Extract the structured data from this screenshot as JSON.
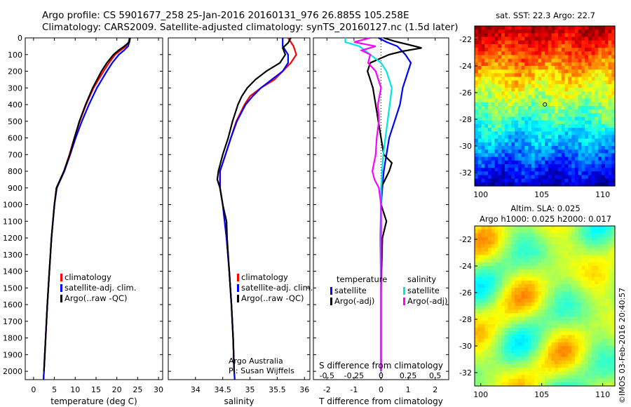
{
  "header": {
    "line1": "Argo profile: CS 5901677_258 25-Jan-2016 20160131_976 26.885S 105.258E",
    "line2": "Climatology: CARS2009. Satellite-adjusted climatology: synTS_20160127.nc (1.5d later)"
  },
  "footer_stamp": "©IMOS 03-Feb-2016 20:40:57",
  "colors": {
    "climatology": "#ff0000",
    "satellite": "#0000ff",
    "argo": "#000000",
    "sal_satellite": "#00e5e5",
    "sal_argo": "#ff00ff"
  },
  "chart_data": [
    {
      "type": "line",
      "xlabel": "temperature (deg C)",
      "ylabel": "",
      "xlim": [
        -2,
        31
      ],
      "ylim": [
        2050,
        0
      ],
      "xticks": [
        0,
        5,
        10,
        15,
        20,
        25,
        30
      ],
      "yticks": [
        0,
        100,
        200,
        300,
        400,
        500,
        600,
        700,
        800,
        900,
        1000,
        1100,
        1200,
        1300,
        1400,
        1500,
        1600,
        1700,
        1800,
        1900,
        2000
      ],
      "legend": [
        "climatology",
        "satellite-adj. clim.",
        "Argo(..raw -QC)"
      ],
      "series": [
        {
          "name": "climatology",
          "depth": [
            0,
            25,
            50,
            75,
            100,
            150,
            200,
            300,
            400,
            500,
            600,
            700,
            800,
            900,
            1000,
            1200,
            1400,
            1600,
            1800,
            2000,
            2050
          ],
          "values": [
            23.1,
            22.8,
            22.2,
            20.9,
            19.6,
            18.1,
            16.8,
            14.4,
            12.6,
            11.1,
            9.8,
            8.6,
            7.3,
            5.5,
            5.0,
            4.3,
            3.8,
            3.3,
            2.9,
            2.5,
            2.4
          ]
        },
        {
          "name": "satellite-adj. clim.",
          "depth": [
            0,
            25,
            50,
            75,
            100,
            150,
            200,
            300,
            400,
            500,
            600,
            700,
            800,
            900,
            1000,
            1200,
            1400,
            1600,
            1800,
            2000,
            2050
          ],
          "values": [
            23.0,
            23.0,
            22.7,
            21.7,
            20.5,
            18.9,
            17.6,
            15.2,
            13.3,
            11.6,
            10.1,
            8.8,
            7.4,
            5.6,
            5.0,
            4.3,
            3.8,
            3.3,
            2.9,
            2.5,
            2.4
          ]
        },
        {
          "name": "Argo(..raw -QC)",
          "depth": [
            0,
            25,
            50,
            75,
            100,
            150,
            200,
            300,
            400,
            500,
            600,
            700,
            800,
            900,
            1000,
            1200,
            1400,
            1600,
            1800,
            2000
          ],
          "values": [
            23.2,
            23.0,
            21.8,
            20.4,
            19.2,
            17.6,
            16.3,
            14.2,
            12.5,
            11.0,
            9.8,
            8.7,
            7.3,
            5.5,
            5.0,
            4.3,
            3.8,
            3.3,
            2.9,
            2.5
          ]
        }
      ]
    },
    {
      "type": "line",
      "xlabel": "salinity",
      "ylabel": "",
      "xlim": [
        33.5,
        36.1
      ],
      "ylim": [
        2050,
        0
      ],
      "xticks": [
        34,
        34.5,
        35,
        35.5,
        36
      ],
      "legend": [
        "climatology",
        "satellite-adj. clim.",
        "Argo(..raw -QC)"
      ],
      "annotation": [
        "Argo Australia",
        "PI: Susan Wijffels"
      ],
      "series": [
        {
          "name": "climatology",
          "depth": [
            0,
            50,
            100,
            150,
            200,
            250,
            300,
            350,
            400,
            500,
            600,
            700,
            800,
            900,
            1000,
            1200,
            1400,
            1600,
            1800,
            2000,
            2050
          ],
          "values": [
            35.7,
            35.8,
            35.85,
            35.75,
            35.6,
            35.45,
            35.2,
            35.0,
            34.9,
            34.75,
            34.65,
            34.55,
            34.45,
            34.45,
            34.5,
            34.57,
            34.62,
            34.66,
            34.69,
            34.71,
            34.72
          ]
        },
        {
          "name": "satellite-adj. clim.",
          "depth": [
            0,
            50,
            100,
            150,
            200,
            250,
            300,
            350,
            400,
            500,
            600,
            700,
            800,
            900,
            1000,
            1200,
            1400,
            1600,
            1800,
            2000,
            2050
          ],
          "values": [
            35.6,
            35.6,
            35.7,
            35.7,
            35.6,
            35.4,
            35.2,
            35.05,
            34.92,
            34.76,
            34.65,
            34.55,
            34.45,
            34.45,
            34.5,
            34.57,
            34.62,
            34.66,
            34.69,
            34.71,
            34.72
          ]
        },
        {
          "name": "Argo(..raw -QC)",
          "depth": [
            0,
            30,
            60,
            100,
            150,
            200,
            250,
            300,
            350,
            400,
            500,
            600,
            700,
            800,
            850,
            900,
            1000,
            1100,
            1200,
            1400,
            1600,
            1800,
            2000
          ],
          "values": [
            35.75,
            35.7,
            35.6,
            35.65,
            35.55,
            35.3,
            35.1,
            34.95,
            34.85,
            34.78,
            34.68,
            34.6,
            34.5,
            34.42,
            34.4,
            34.45,
            34.5,
            34.57,
            34.58,
            34.62,
            34.66,
            34.69,
            34.71
          ]
        }
      ]
    },
    {
      "type": "line",
      "xlabel": "T difference from climatology",
      "xlabel2": "S difference from climatology",
      "xlim": [
        -2.5,
        2.5
      ],
      "ylim": [
        2050,
        0
      ],
      "xticks": [
        -2,
        -1,
        0,
        1,
        2
      ],
      "xticks_labels": [
        "-2",
        "-1",
        "0",
        "1",
        "2"
      ],
      "s_xticks_labels": [
        "-0.5",
        "-0.25",
        "0",
        "0.25",
        "0.5"
      ],
      "legend_temperature": {
        "title": "temperature",
        "items": [
          "satellite",
          "Argo(-adj)"
        ]
      },
      "legend_salinity": {
        "title": "salinity",
        "items": [
          "satellite",
          "Argo(-adj)"
        ]
      },
      "series": [
        {
          "name": "satellite",
          "group": "temperature",
          "depth": [
            0,
            25,
            50,
            100,
            150,
            200,
            300,
            400,
            500,
            600,
            700,
            800,
            900,
            1000,
            1200,
            1500,
            2000
          ],
          "values": [
            -0.1,
            0.2,
            0.6,
            0.9,
            1.1,
            1.0,
            0.8,
            0.7,
            0.5,
            0.3,
            0.2,
            0.1,
            0.05,
            0.0,
            0.0,
            0.0,
            0.0
          ]
        },
        {
          "name": "Argo(-adj)",
          "group": "temperature",
          "depth": [
            0,
            20,
            40,
            60,
            80,
            100,
            150,
            200,
            300,
            400,
            500,
            600,
            700,
            750,
            800,
            900,
            1000,
            1100,
            1200,
            1500,
            2000
          ],
          "values": [
            0.1,
            0.5,
            1.0,
            1.5,
            0.8,
            0.3,
            -0.4,
            -0.5,
            -0.3,
            -0.2,
            -0.1,
            0.0,
            0.1,
            0.4,
            0.3,
            0.0,
            0.0,
            0.2,
            0.05,
            0.0,
            0.0
          ]
        },
        {
          "name": "satellite",
          "group": "salinity",
          "depth": [
            0,
            25,
            50,
            100,
            150,
            200,
            300,
            400,
            500,
            600,
            700,
            800,
            900,
            1000,
            1200,
            1500,
            2000
          ],
          "values": [
            -0.33,
            -0.33,
            -0.2,
            -0.1,
            0.0,
            0.05,
            0.1,
            0.08,
            0.06,
            0.04,
            0.02,
            0.01,
            0.0,
            0.0,
            -0.01,
            0.0,
            0.0
          ]
        },
        {
          "name": "Argo(-adj)",
          "group": "salinity",
          "depth": [
            0,
            25,
            50,
            75,
            100,
            150,
            200,
            300,
            400,
            500,
            600,
            700,
            800,
            850,
            900,
            1000,
            1200,
            1500,
            2000
          ],
          "values": [
            -0.1,
            -0.25,
            -0.05,
            -0.18,
            -0.1,
            -0.12,
            -0.05,
            0.0,
            -0.03,
            -0.02,
            -0.04,
            -0.05,
            -0.08,
            -0.06,
            -0.02,
            0.0,
            0.0,
            0.0,
            0.0
          ]
        }
      ]
    },
    {
      "type": "heatmap",
      "title": "sat. SST: 22.3 Argo: 22.7",
      "xticks": [
        100,
        105,
        110
      ],
      "yticks": [
        -22,
        -24,
        -26,
        -28,
        -30,
        -32
      ],
      "xlim": [
        99.5,
        111
      ],
      "ylim": [
        -33,
        -21
      ],
      "marker": {
        "lon": 105.258,
        "lat": -26.885
      }
    },
    {
      "type": "heatmap",
      "title_line1": "Altim. SLA: 0.025",
      "title_line2": "Argo h1000: 0.025 h2000: 0.017",
      "xticks": [
        100,
        105,
        110
      ],
      "yticks": [
        -22,
        -24,
        -26,
        -28,
        -30,
        -32
      ],
      "xlim": [
        99.5,
        111
      ],
      "ylim": [
        -33,
        -21
      ]
    }
  ]
}
